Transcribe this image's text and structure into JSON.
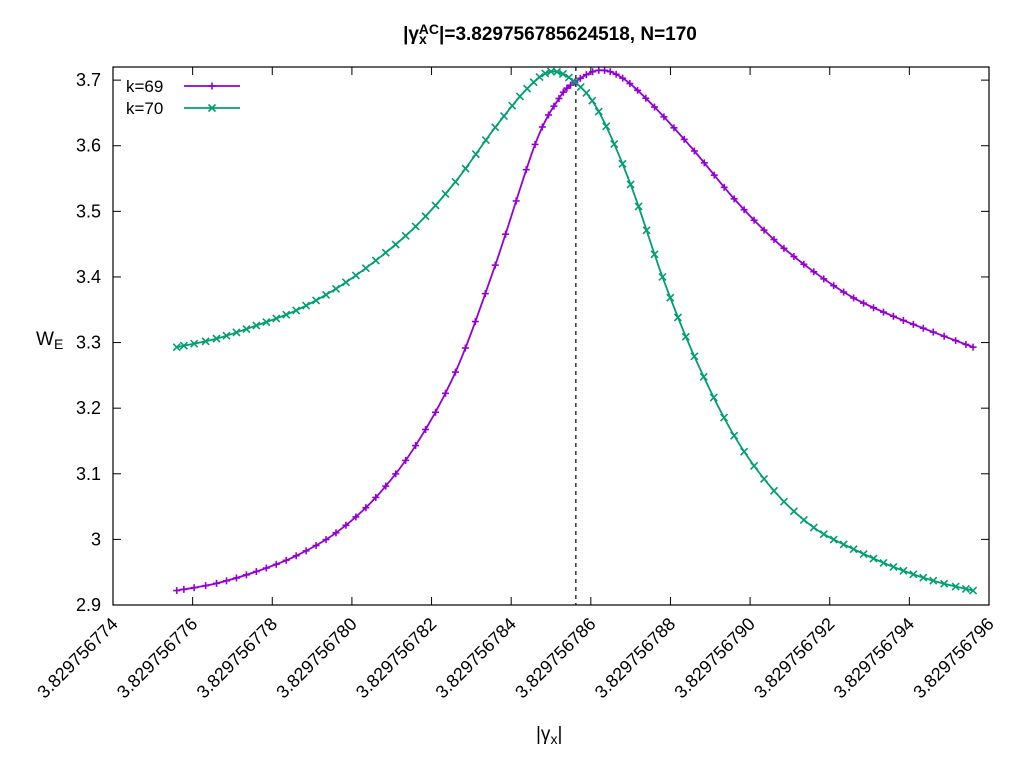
{
  "chart_data": {
    "type": "line",
    "title": {
      "prefix": "|γ",
      "sub": "x",
      "sup": "AC",
      "suffix": "|=3.829756785624518, N=170"
    },
    "xlabel": {
      "text": "|γ",
      "sub": "x",
      "suffix": "|"
    },
    "ylabel": {
      "text": "W",
      "sub": "E"
    },
    "xlim": [
      3.829756774,
      3.829756796
    ],
    "ylim": [
      2.9,
      3.72
    ],
    "x_ticks": [
      {
        "value": 3.829756774,
        "label": "3.829756774"
      },
      {
        "value": 3.829756776,
        "label": "3.829756776"
      },
      {
        "value": 3.829756778,
        "label": "3.829756778"
      },
      {
        "value": 3.82975678,
        "label": "3.829756780"
      },
      {
        "value": 3.829756782,
        "label": "3.829756782"
      },
      {
        "value": 3.829756784,
        "label": "3.829756784"
      },
      {
        "value": 3.829756786,
        "label": "3.829756786"
      },
      {
        "value": 3.829756788,
        "label": "3.829756788"
      },
      {
        "value": 3.82975679,
        "label": "3.829756790"
      },
      {
        "value": 3.829756792,
        "label": "3.829756792"
      },
      {
        "value": 3.829756794,
        "label": "3.829756794"
      },
      {
        "value": 3.829756796,
        "label": "3.829756796"
      }
    ],
    "y_ticks": [
      {
        "value": 2.9,
        "label": "2.9"
      },
      {
        "value": 3.0,
        "label": "3"
      },
      {
        "value": 3.1,
        "label": "3.1"
      },
      {
        "value": 3.2,
        "label": "3.2"
      },
      {
        "value": 3.3,
        "label": "3.3"
      },
      {
        "value": 3.4,
        "label": "3.4"
      },
      {
        "value": 3.5,
        "label": "3.5"
      },
      {
        "value": 3.6,
        "label": "3.6"
      },
      {
        "value": 3.7,
        "label": "3.7"
      }
    ],
    "vline": 3.829756785624518,
    "grid": false,
    "legend_position": "top-left",
    "series": [
      {
        "name": "k=69",
        "color": "#9400d3",
        "marker": "plus",
        "points": [
          [
            3.8297567756,
            2.922
          ],
          [
            3.8297567766,
            2.933
          ],
          [
            3.8297567776,
            2.951
          ],
          [
            3.8297567786,
            2.975
          ],
          [
            3.8297567796,
            3.01
          ],
          [
            3.8297567806,
            3.064
          ],
          [
            3.8297567816,
            3.143
          ],
          [
            3.8297567826,
            3.255
          ],
          [
            3.8297567836,
            3.418
          ],
          [
            3.8297567846,
            3.602
          ],
          [
            3.8297567852,
            3.672
          ],
          [
            3.8297567856,
            3.697
          ],
          [
            3.8297567862,
            3.715
          ],
          [
            3.8297567868,
            3.703
          ],
          [
            3.8297567876,
            3.659
          ],
          [
            3.8297567886,
            3.592
          ],
          [
            3.8297567896,
            3.519
          ],
          [
            3.8297567906,
            3.457
          ],
          [
            3.8297567916,
            3.408
          ],
          [
            3.8297567926,
            3.368
          ],
          [
            3.8297567936,
            3.34
          ],
          [
            3.8297567946,
            3.316
          ],
          [
            3.8297567956,
            3.293
          ]
        ]
      },
      {
        "name": "k=70",
        "color": "#009e73",
        "marker": "cross",
        "points": [
          [
            3.8297567756,
            3.293
          ],
          [
            3.8297567766,
            3.306
          ],
          [
            3.8297567776,
            3.326
          ],
          [
            3.8297567786,
            3.349
          ],
          [
            3.8297567796,
            3.382
          ],
          [
            3.8297567806,
            3.425
          ],
          [
            3.8297567816,
            3.477
          ],
          [
            3.8297567826,
            3.545
          ],
          [
            3.8297567836,
            3.628
          ],
          [
            3.8297567844,
            3.687
          ],
          [
            3.829756785,
            3.713
          ],
          [
            3.8297567856,
            3.697
          ],
          [
            3.8297567862,
            3.652
          ],
          [
            3.829756787,
            3.541
          ],
          [
            3.8297567878,
            3.4
          ],
          [
            3.8297567886,
            3.279
          ],
          [
            3.8297567896,
            3.158
          ],
          [
            3.8297567906,
            3.074
          ],
          [
            3.8297567916,
            3.018
          ],
          [
            3.8297567926,
            2.985
          ],
          [
            3.8297567936,
            2.958
          ],
          [
            3.8297567946,
            2.937
          ],
          [
            3.8297567956,
            2.922
          ]
        ]
      }
    ]
  }
}
